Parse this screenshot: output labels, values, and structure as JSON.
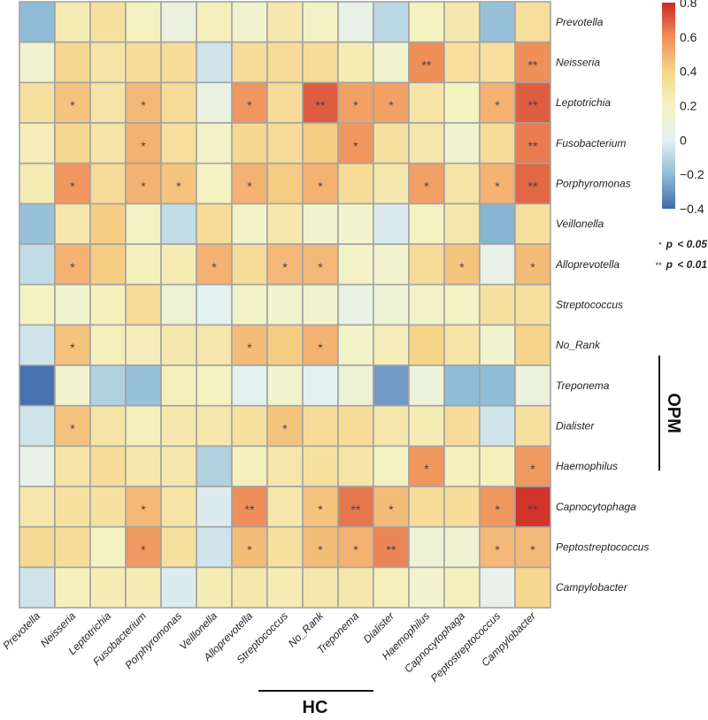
{
  "chart_data": {
    "type": "heatmap",
    "title": "",
    "row_labels": [
      "Prevotella",
      "Neisseria",
      "Leptotrichia",
      "Fusobacterium",
      "Porphyromonas",
      "Veillonella",
      "Alloprevotella",
      "Streptococcus",
      "No_Rank",
      "Treponema",
      "Dialister",
      "Haemophilus",
      "Capnocytophaga",
      "Peptostreptococcus",
      "Campylobacter"
    ],
    "col_labels": [
      "Prevotella",
      "Neisseria",
      "Leptotrichia",
      "Fusobacterium",
      "Porphyromonas",
      "Veillonella",
      "Alloprevotella",
      "Streptococcus",
      "No_Rank",
      "Treponema",
      "Dialister",
      "Haemophilus",
      "Capnocytophaga",
      "Peptostreptococcus",
      "Campylobacter"
    ],
    "row_group_label": "OPM",
    "col_group_label": "HC",
    "values": [
      [
        -0.2,
        0.25,
        0.32,
        0.2,
        0.08,
        0.22,
        0.15,
        0.27,
        0.18,
        0.05,
        -0.1,
        0.2,
        0.27,
        -0.18,
        0.33
      ],
      [
        0.15,
        0.38,
        0.3,
        0.35,
        0.35,
        -0.05,
        0.35,
        0.35,
        0.35,
        0.25,
        0.15,
        0.6,
        0.33,
        0.33,
        0.6
      ],
      [
        0.32,
        0.45,
        0.3,
        0.48,
        0.35,
        0.07,
        0.58,
        0.35,
        0.7,
        0.55,
        0.55,
        0.3,
        0.2,
        0.5,
        0.7
      ],
      [
        0.23,
        0.38,
        0.3,
        0.5,
        0.33,
        0.17,
        0.38,
        0.35,
        0.42,
        0.58,
        0.32,
        0.28,
        0.15,
        0.35,
        0.64
      ],
      [
        0.25,
        0.58,
        0.35,
        0.5,
        0.45,
        0.2,
        0.5,
        0.43,
        0.5,
        0.35,
        0.27,
        0.55,
        0.3,
        0.5,
        0.68
      ],
      [
        -0.18,
        0.28,
        0.42,
        0.18,
        -0.08,
        0.35,
        0.17,
        0.27,
        0.15,
        0.15,
        -0.02,
        0.2,
        0.28,
        -0.22,
        0.32
      ],
      [
        -0.08,
        0.5,
        0.42,
        0.22,
        0.25,
        0.5,
        0.35,
        0.48,
        0.48,
        0.18,
        0.15,
        0.35,
        0.45,
        0.05,
        0.47
      ],
      [
        0.2,
        0.15,
        0.22,
        0.35,
        0.12,
        0.0,
        0.17,
        0.15,
        0.15,
        0.06,
        0.12,
        0.17,
        0.18,
        0.32,
        0.32
      ],
      [
        -0.05,
        0.45,
        0.22,
        0.23,
        0.27,
        0.28,
        0.47,
        0.42,
        0.5,
        0.17,
        0.23,
        0.4,
        0.3,
        0.15,
        0.4
      ],
      [
        -0.38,
        0.15,
        -0.12,
        -0.18,
        0.22,
        0.2,
        0.0,
        0.15,
        0.0,
        0.12,
        -0.28,
        0.1,
        -0.2,
        -0.2,
        0.08
      ],
      [
        -0.05,
        0.45,
        0.3,
        0.22,
        0.27,
        0.28,
        0.32,
        0.45,
        0.35,
        0.35,
        0.28,
        0.25,
        0.35,
        -0.05,
        0.32
      ],
      [
        0.05,
        0.3,
        0.35,
        0.28,
        0.28,
        -0.12,
        0.22,
        0.28,
        0.32,
        0.3,
        0.2,
        0.58,
        0.22,
        0.22,
        0.57
      ],
      [
        0.28,
        0.32,
        0.32,
        0.48,
        0.3,
        -0.02,
        0.6,
        0.28,
        0.45,
        0.65,
        0.47,
        0.35,
        0.35,
        0.58,
        0.78
      ],
      [
        0.37,
        0.35,
        0.2,
        0.57,
        0.32,
        -0.05,
        0.47,
        0.32,
        0.47,
        0.5,
        0.62,
        0.12,
        0.13,
        0.48,
        0.48
      ],
      [
        -0.05,
        0.22,
        0.25,
        0.25,
        -0.02,
        0.25,
        0.28,
        0.25,
        0.28,
        0.28,
        0.22,
        0.15,
        0.22,
        0.03,
        0.38
      ]
    ],
    "significance": [
      [
        "",
        "",
        "",
        "",
        "",
        "",
        "",
        "",
        "",
        "",
        "",
        "",
        "",
        "",
        ""
      ],
      [
        "",
        "",
        "",
        "",
        "",
        "",
        "",
        "",
        "",
        "",
        "",
        "**",
        "",
        "",
        "**"
      ],
      [
        "",
        "*",
        "",
        "*",
        "",
        "",
        "*",
        "",
        "**",
        "*",
        "*",
        "",
        "",
        "*",
        "**"
      ],
      [
        "",
        "",
        "",
        "*",
        "",
        "",
        "",
        "",
        "",
        "*",
        "",
        "",
        "",
        "",
        "**"
      ],
      [
        "",
        "*",
        "",
        "*",
        "*",
        "",
        "*",
        "",
        "*",
        "",
        "",
        "*",
        "",
        "*",
        "**"
      ],
      [
        "",
        "",
        "",
        "",
        "",
        "",
        "",
        "",
        "",
        "",
        "",
        "",
        "",
        "",
        ""
      ],
      [
        "",
        "*",
        "",
        "",
        "",
        "*",
        "",
        "*",
        "*",
        "",
        "",
        "",
        "*",
        "",
        "*"
      ],
      [
        "",
        "",
        "",
        "",
        "",
        "",
        "",
        "",
        "",
        "",
        "",
        "",
        "",
        "",
        ""
      ],
      [
        "",
        "*",
        "",
        "",
        "",
        "",
        "*",
        "",
        "*",
        "",
        "",
        "",
        "",
        "",
        ""
      ],
      [
        "",
        "",
        "",
        "",
        "",
        "",
        "",
        "",
        "",
        "",
        "",
        "",
        "",
        "",
        ""
      ],
      [
        "",
        "*",
        "",
        "",
        "",
        "",
        "",
        "*",
        "",
        "",
        "",
        "",
        "",
        "",
        ""
      ],
      [
        "",
        "",
        "",
        "",
        "",
        "",
        "",
        "",
        "",
        "",
        "",
        "*",
        "",
        "",
        "*"
      ],
      [
        "",
        "",
        "",
        "*",
        "",
        "",
        "**",
        "",
        "*",
        "**",
        "*",
        "",
        "",
        "*",
        "**"
      ],
      [
        "",
        "",
        "",
        "*",
        "",
        "",
        "*",
        "",
        "*",
        "*",
        "**",
        "",
        "",
        "*",
        "*"
      ],
      [
        "",
        "",
        "",
        "",
        "",
        "",
        "",
        "",
        "",
        "",
        "",
        "",
        "",
        "",
        ""
      ]
    ],
    "colorbar": {
      "range": [
        -0.4,
        0.8
      ],
      "ticks": [
        "0.8",
        "0.6",
        "0.4",
        "0.2",
        "0",
        "−0.2",
        "−0.4"
      ],
      "tick_values": [
        0.8,
        0.6,
        0.4,
        0.2,
        0,
        -0.2,
        -0.4
      ],
      "stops": [
        {
          "v": -0.4,
          "c": "#3f6aa8"
        },
        {
          "v": -0.2,
          "c": "#8fbcd6"
        },
        {
          "v": 0.0,
          "c": "#e4f1f1"
        },
        {
          "v": 0.2,
          "c": "#f5f2c2"
        },
        {
          "v": 0.4,
          "c": "#f6d48a"
        },
        {
          "v": 0.6,
          "c": "#ef8f5a"
        },
        {
          "v": 0.8,
          "c": "#cc2a26"
        }
      ]
    },
    "legend": {
      "p05_mark": "*",
      "p05_p": "p",
      "p05_rest": "< 0.05",
      "p01_mark": "**",
      "p01_p": "p",
      "p01_rest": "< 0.01"
    }
  }
}
